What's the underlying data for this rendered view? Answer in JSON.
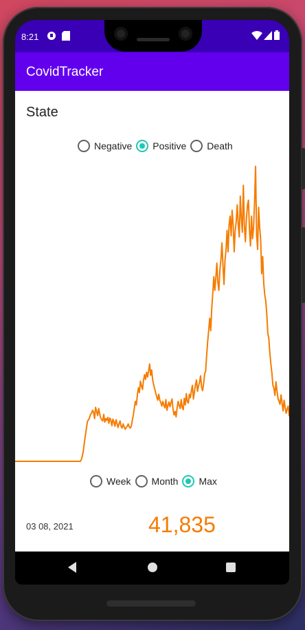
{
  "status_bar": {
    "time": "8:21",
    "left_icons": [
      "notification-icon",
      "sd-card-icon"
    ],
    "right_icons": [
      "wifi-icon",
      "signal-icon",
      "battery-icon"
    ]
  },
  "app_bar": {
    "title": "CovidTracker"
  },
  "screen_title": "State",
  "metric_options": [
    {
      "label": "Negative",
      "checked": false
    },
    {
      "label": "Positive",
      "checked": true
    },
    {
      "label": "Death",
      "checked": false
    }
  ],
  "range_options": [
    {
      "label": "Week",
      "checked": false
    },
    {
      "label": "Month",
      "checked": false
    },
    {
      "label": "Max",
      "checked": true
    }
  ],
  "selected": {
    "date": "03 08, 2021",
    "count": "41,835"
  },
  "colors": {
    "accent": "#6200ee",
    "status": "#3a00b5",
    "line": "#f57c00",
    "radio": "#1ec8b4"
  },
  "chart_data": {
    "type": "line",
    "title": "",
    "xlabel": "",
    "ylabel": "",
    "ylim": [
      0,
      50000
    ],
    "series": [
      {
        "values": [
          0,
          0,
          0,
          0,
          0,
          0,
          0,
          0,
          0,
          0,
          0,
          0,
          0,
          0,
          0,
          0,
          0,
          0,
          0,
          0,
          0,
          0,
          0,
          0,
          0,
          0,
          0,
          0,
          0,
          0,
          0,
          0,
          0,
          0,
          0,
          0,
          0,
          0,
          0,
          0,
          0,
          0,
          0,
          0,
          0,
          0,
          0,
          0,
          0,
          0,
          0,
          0,
          0,
          0,
          0,
          0,
          0,
          0,
          0,
          0,
          0,
          0,
          0,
          0,
          0,
          300,
          900,
          1800,
          3200,
          4400,
          5600,
          6700,
          7000,
          7300,
          7900,
          8100,
          8600,
          8300,
          7200,
          9100,
          8400,
          7700,
          8900,
          8000,
          7300,
          7000,
          6800,
          7900,
          6600,
          7200,
          6900,
          7400,
          6400,
          7300,
          6900,
          6000,
          7100,
          6600,
          5900,
          7000,
          6400,
          5700,
          6300,
          6800,
          5900,
          5600,
          6300,
          5800,
          5400,
          5700,
          5900,
          6300,
          5800,
          5600,
          5900,
          6900,
          7800,
          9000,
          10100,
          9500,
          11200,
          12400,
          11600,
          13500,
          12700,
          12100,
          13600,
          14600,
          13800,
          15000,
          14200,
          15200,
          16400,
          14500,
          15400,
          13700,
          12900,
          12200,
          11500,
          10900,
          10300,
          11300,
          10300,
          9900,
          9300,
          10100,
          9500,
          9000,
          10400,
          8600,
          9400,
          10000,
          9200,
          9900,
          10500,
          8800,
          7800,
          8400,
          7500,
          9000,
          10100,
          9400,
          8900,
          10400,
          9100,
          8700,
          10600,
          9500,
          11400,
          10100,
          9800,
          11300,
          10700,
          11900,
          12800,
          10500,
          11700,
          12900,
          13700,
          11800,
          12700,
          13300,
          14400,
          12500,
          11900,
          13100,
          14700,
          15200,
          17900,
          20200,
          22100,
          24100,
          22000,
          25800,
          28300,
          31100,
          28800,
          30900,
          33400,
          30100,
          28800,
          32300,
          34000,
          36800,
          33000,
          29800,
          33900,
          35600,
          38900,
          35300,
          39800,
          41300,
          38000,
          42300,
          39800,
          35300,
          38900,
          40400,
          43200,
          39900,
          37800,
          44700,
          41000,
          38600,
          46500,
          39800,
          37000,
          40800,
          43100,
          44000,
          39000,
          36300,
          41300,
          37500,
          39300,
          43700,
          49700,
          38200,
          35700,
          42800,
          39400,
          37300,
          31600,
          34500,
          30000,
          28100,
          27000,
          24800,
          21600,
          20700,
          18300,
          16400,
          14900,
          12800,
          12300,
          11100,
          13400,
          11900,
          10600,
          10100,
          9600,
          11200,
          9800,
          8500,
          10300,
          9100,
          8100,
          8800,
          9300,
          7600
        ]
      }
    ]
  }
}
